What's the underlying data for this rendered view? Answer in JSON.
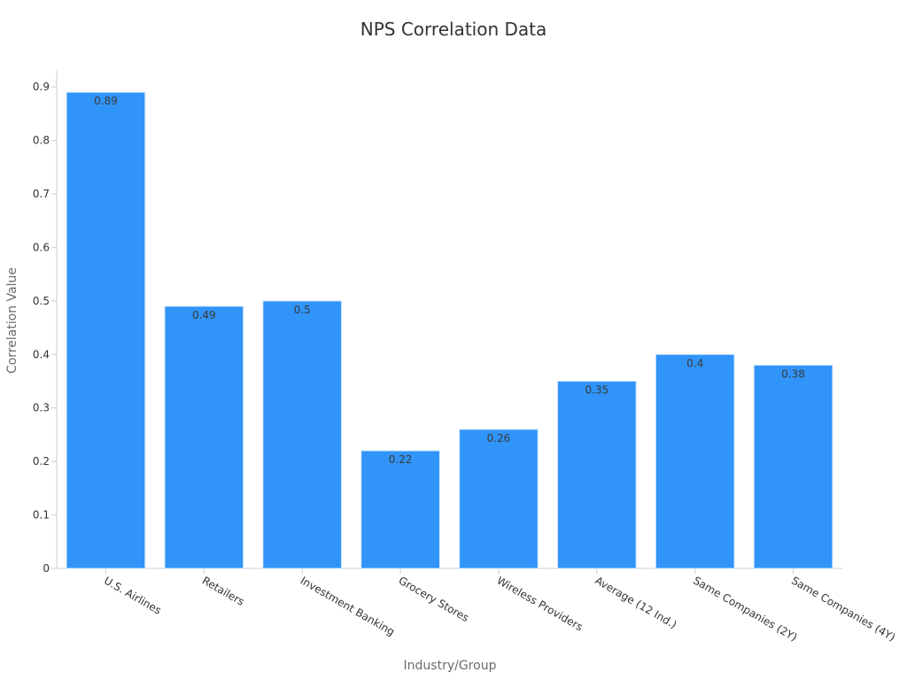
{
  "chart_data": {
    "type": "bar",
    "title": "NPS Correlation Data",
    "xlabel": "Industry/Group",
    "ylabel": "Correlation Value",
    "categories": [
      "U.S. Airlines",
      "Retailers",
      "Investment Banking",
      "Grocery Stores",
      "Wireless Providers",
      "Average (12 Ind.)",
      "Same Companies (2Y)",
      "Same Companies (4Y)"
    ],
    "values": [
      0.89,
      0.49,
      0.5,
      0.22,
      0.26,
      0.35,
      0.4,
      0.38
    ],
    "data_labels": [
      "0.89",
      "0.49",
      "0.5",
      "0.22",
      "0.26",
      "0.35",
      "0.4",
      "0.38"
    ],
    "yticks": [
      0,
      0.1,
      0.2,
      0.3,
      0.4,
      0.5,
      0.6,
      0.7,
      0.8,
      0.9
    ],
    "ytick_labels": [
      "0",
      "0.1",
      "0.2",
      "0.3",
      "0.4",
      "0.5",
      "0.6",
      "0.7",
      "0.8",
      "0.9"
    ],
    "ylim": [
      0,
      0.93
    ],
    "grid": false,
    "legend": "none",
    "bar_color": "#3094F9",
    "bar_border_color": "#D6E9FE"
  }
}
